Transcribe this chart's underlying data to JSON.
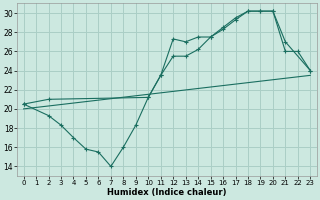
{
  "title": "",
  "xlabel": "Humidex (Indice chaleur)",
  "bg_color": "#cce8e0",
  "grid_color": "#aacec6",
  "line_color": "#1a6e60",
  "xlim": [
    -0.5,
    23.5
  ],
  "ylim": [
    13,
    31
  ],
  "yticks": [
    14,
    16,
    18,
    20,
    22,
    24,
    26,
    28,
    30
  ],
  "xticks": [
    0,
    1,
    2,
    3,
    4,
    5,
    6,
    7,
    8,
    9,
    10,
    11,
    12,
    13,
    14,
    15,
    16,
    17,
    18,
    19,
    20,
    21,
    22,
    23
  ],
  "line1_x": [
    0,
    2,
    3,
    4,
    5,
    6,
    7,
    8,
    9,
    10,
    11,
    12,
    13,
    14,
    15,
    16,
    17,
    18,
    19,
    20,
    21,
    22,
    23
  ],
  "line1_y": [
    20.5,
    19.3,
    18.3,
    17.0,
    15.8,
    15.5,
    14.0,
    16.0,
    18.3,
    21.2,
    23.5,
    27.3,
    27.0,
    27.5,
    27.5,
    28.3,
    29.3,
    30.2,
    30.2,
    30.2,
    26.0,
    26.0,
    24.0
  ],
  "line2_x": [
    0,
    2,
    10,
    11,
    12,
    13,
    14,
    15,
    16,
    17,
    18,
    19,
    20,
    21,
    23
  ],
  "line2_y": [
    20.5,
    21.0,
    21.2,
    23.5,
    25.5,
    25.5,
    26.2,
    27.5,
    28.5,
    29.5,
    30.2,
    30.2,
    30.2,
    27.0,
    24.0
  ],
  "line3_x": [
    0,
    23
  ],
  "line3_y": [
    20.0,
    23.5
  ]
}
